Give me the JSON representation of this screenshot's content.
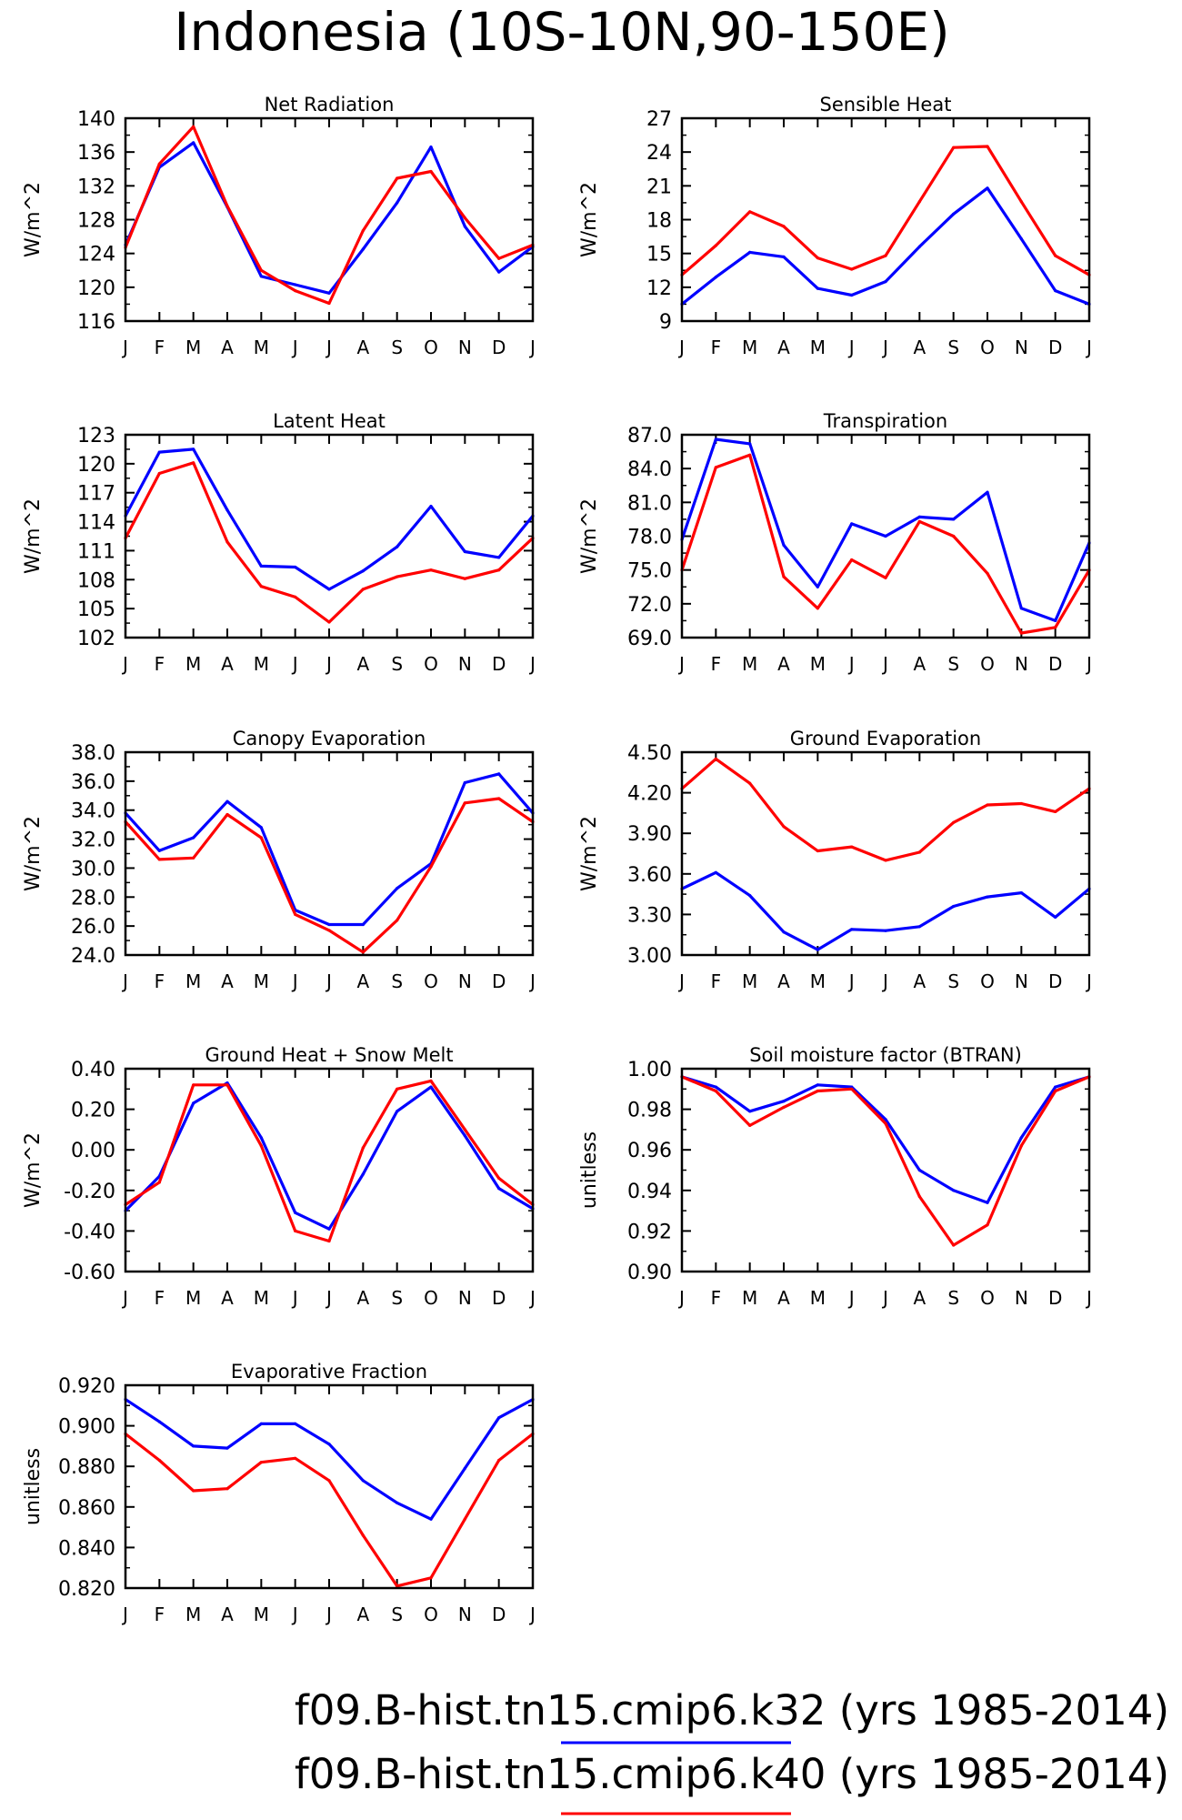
{
  "figure": {
    "title": "Indonesia (10S-10N,90-150E)"
  },
  "legend": [
    {
      "label": "f09.B-hist.tn15.cmip6.k32 (yrs 1985-2014)",
      "color": "#0000ff"
    },
    {
      "label": "f09.B-hist.tn15.cmip6.k40 (yrs 1985-2014)",
      "color": "#ff0000"
    }
  ],
  "colors": {
    "series_k32": "#0000ff",
    "series_k40": "#ff0000",
    "axis": "#000000"
  },
  "chart_data": [
    {
      "type": "line",
      "title": "Net Radiation",
      "ylabel": "W/m^2",
      "ylim": [
        116,
        140
      ],
      "yticks": [
        "116",
        "120",
        "124",
        "128",
        "132",
        "136",
        "140"
      ],
      "categories": [
        "J",
        "F",
        "M",
        "A",
        "M",
        "J",
        "J",
        "A",
        "S",
        "O",
        "N",
        "D",
        "J"
      ],
      "series": [
        {
          "name": "f09.B-hist.tn15.cmip6.k32",
          "color": "#0000ff",
          "values": [
            125,
            134.2,
            137.1,
            129.5,
            121.3,
            120.3,
            119.3,
            124.5,
            130.0,
            136.6,
            127.2,
            121.8,
            124.8
          ]
        },
        {
          "name": "f09.B-hist.tn15.cmip6.k40",
          "color": "#ff0000",
          "values": [
            124.7,
            134.6,
            139.0,
            129.6,
            122.0,
            119.6,
            118.1,
            126.7,
            132.9,
            133.7,
            128.2,
            123.4,
            125.0
          ]
        }
      ]
    },
    {
      "type": "line",
      "title": "Sensible Heat",
      "ylabel": "W/m^2",
      "ylim": [
        9,
        27
      ],
      "yticks": [
        "9",
        "12",
        "15",
        "18",
        "21",
        "24",
        "27"
      ],
      "categories": [
        "J",
        "F",
        "M",
        "A",
        "M",
        "J",
        "J",
        "A",
        "S",
        "O",
        "N",
        "D",
        "J"
      ],
      "series": [
        {
          "name": "f09.B-hist.tn15.cmip6.k32",
          "color": "#0000ff",
          "values": [
            10.5,
            12.9,
            15.1,
            14.7,
            11.9,
            11.3,
            12.5,
            15.6,
            18.5,
            20.8,
            16.3,
            11.7,
            10.5
          ]
        },
        {
          "name": "f09.B-hist.tn15.cmip6.k40",
          "color": "#ff0000",
          "values": [
            13.1,
            15.7,
            18.7,
            17.4,
            14.6,
            13.6,
            14.8,
            19.6,
            24.4,
            24.5,
            19.6,
            14.8,
            13.1
          ]
        }
      ]
    },
    {
      "type": "line",
      "title": "Latent Heat",
      "ylabel": "W/m^2",
      "ylim": [
        102,
        123
      ],
      "yticks": [
        "102",
        "105",
        "108",
        "111",
        "114",
        "117",
        "120",
        "123"
      ],
      "categories": [
        "J",
        "F",
        "M",
        "A",
        "M",
        "J",
        "J",
        "A",
        "S",
        "O",
        "N",
        "D",
        "J"
      ],
      "series": [
        {
          "name": "f09.B-hist.tn15.cmip6.k32",
          "color": "#0000ff",
          "values": [
            114.6,
            121.2,
            121.5,
            115.2,
            109.4,
            109.3,
            107.0,
            108.9,
            111.4,
            115.6,
            110.9,
            110.3,
            114.6
          ]
        },
        {
          "name": "f09.B-hist.tn15.cmip6.k40",
          "color": "#ff0000",
          "values": [
            112.3,
            119.0,
            120.1,
            111.9,
            107.3,
            106.2,
            103.6,
            107.0,
            108.3,
            109.0,
            108.1,
            109.0,
            112.3
          ]
        }
      ]
    },
    {
      "type": "line",
      "title": "Transpiration",
      "ylabel": "W/m^2",
      "ylim": [
        69,
        87
      ],
      "yticks": [
        "69.0",
        "72.0",
        "75.0",
        "78.0",
        "81.0",
        "84.0",
        "87.0"
      ],
      "categories": [
        "J",
        "F",
        "M",
        "A",
        "M",
        "J",
        "J",
        "A",
        "S",
        "O",
        "N",
        "D",
        "J"
      ],
      "series": [
        {
          "name": "f09.B-hist.tn15.cmip6.k32",
          "color": "#0000ff",
          "values": [
            77.7,
            86.6,
            86.2,
            77.2,
            73.5,
            79.1,
            78.0,
            79.7,
            79.5,
            81.9,
            71.6,
            70.5,
            77.4
          ]
        },
        {
          "name": "f09.B-hist.tn15.cmip6.k40",
          "color": "#ff0000",
          "values": [
            75.0,
            84.1,
            85.2,
            74.4,
            71.6,
            75.9,
            74.3,
            79.3,
            78.0,
            74.7,
            69.4,
            69.9,
            75.0
          ]
        }
      ]
    },
    {
      "type": "line",
      "title": "Canopy Evaporation",
      "ylabel": "W/m^2",
      "ylim": [
        24,
        38
      ],
      "yticks": [
        "24.0",
        "26.0",
        "28.0",
        "30.0",
        "32.0",
        "34.0",
        "36.0",
        "38.0"
      ],
      "categories": [
        "J",
        "F",
        "M",
        "A",
        "M",
        "J",
        "J",
        "A",
        "S",
        "O",
        "N",
        "D",
        "J"
      ],
      "series": [
        {
          "name": "f09.B-hist.tn15.cmip6.k32",
          "color": "#0000ff",
          "values": [
            33.8,
            31.2,
            32.1,
            34.6,
            32.8,
            27.1,
            26.1,
            26.1,
            28.6,
            30.3,
            35.9,
            36.5,
            33.8
          ]
        },
        {
          "name": "f09.B-hist.tn15.cmip6.k40",
          "color": "#ff0000",
          "values": [
            33.2,
            30.6,
            30.7,
            33.7,
            32.1,
            26.8,
            25.7,
            24.2,
            26.4,
            30.1,
            34.5,
            34.8,
            33.2
          ]
        }
      ]
    },
    {
      "type": "line",
      "title": "Ground Evaporation",
      "ylabel": "W/m^2",
      "ylim": [
        3.0,
        4.5
      ],
      "yticks": [
        "3.00",
        "3.30",
        "3.60",
        "3.90",
        "4.20",
        "4.50"
      ],
      "categories": [
        "J",
        "F",
        "M",
        "A",
        "M",
        "J",
        "J",
        "A",
        "S",
        "O",
        "N",
        "D",
        "J"
      ],
      "series": [
        {
          "name": "f09.B-hist.tn15.cmip6.k32",
          "color": "#0000ff",
          "values": [
            3.49,
            3.61,
            3.44,
            3.17,
            3.04,
            3.19,
            3.18,
            3.21,
            3.36,
            3.43,
            3.46,
            3.28,
            3.49
          ]
        },
        {
          "name": "f09.B-hist.tn15.cmip6.k40",
          "color": "#ff0000",
          "values": [
            4.23,
            4.45,
            4.27,
            3.95,
            3.77,
            3.8,
            3.7,
            3.76,
            3.98,
            4.11,
            4.12,
            4.06,
            4.23
          ]
        }
      ]
    },
    {
      "type": "line",
      "title": "Ground Heat + Snow Melt",
      "ylabel": "W/m^2",
      "ylim": [
        -0.6,
        0.4
      ],
      "yticks": [
        "-0.60",
        "-0.40",
        "-0.20",
        "0.00",
        "0.20",
        "0.40"
      ],
      "categories": [
        "J",
        "F",
        "M",
        "A",
        "M",
        "J",
        "J",
        "A",
        "S",
        "O",
        "N",
        "D",
        "J"
      ],
      "series": [
        {
          "name": "f09.B-hist.tn15.cmip6.k32",
          "color": "#0000ff",
          "values": [
            -0.3,
            -0.13,
            0.23,
            0.33,
            0.06,
            -0.31,
            -0.39,
            -0.12,
            0.19,
            0.31,
            0.07,
            -0.19,
            -0.29
          ]
        },
        {
          "name": "f09.B-hist.tn15.cmip6.k40",
          "color": "#ff0000",
          "values": [
            -0.27,
            -0.16,
            0.32,
            0.32,
            0.02,
            -0.4,
            -0.45,
            0.01,
            0.3,
            0.34,
            0.1,
            -0.14,
            -0.27
          ]
        }
      ]
    },
    {
      "type": "line",
      "title": "Soil moisture factor (BTRAN)",
      "ylabel": "unitless",
      "ylim": [
        0.9,
        1.0
      ],
      "yticks": [
        "0.90",
        "0.92",
        "0.94",
        "0.96",
        "0.98",
        "1.00"
      ],
      "categories": [
        "J",
        "F",
        "M",
        "A",
        "M",
        "J",
        "J",
        "A",
        "S",
        "O",
        "N",
        "D",
        "J"
      ],
      "series": [
        {
          "name": "f09.B-hist.tn15.cmip6.k32",
          "color": "#0000ff",
          "values": [
            0.996,
            0.991,
            0.979,
            0.984,
            0.992,
            0.991,
            0.975,
            0.95,
            0.94,
            0.934,
            0.966,
            0.991,
            0.996
          ]
        },
        {
          "name": "f09.B-hist.tn15.cmip6.k40",
          "color": "#ff0000",
          "values": [
            0.996,
            0.989,
            0.972,
            0.981,
            0.989,
            0.99,
            0.973,
            0.937,
            0.913,
            0.923,
            0.962,
            0.989,
            0.996
          ]
        }
      ]
    },
    {
      "type": "line",
      "title": "Evaporative Fraction",
      "ylabel": "unitless",
      "ylim": [
        0.82,
        0.92
      ],
      "yticks": [
        "0.820",
        "0.840",
        "0.860",
        "0.880",
        "0.900",
        "0.920"
      ],
      "categories": [
        "J",
        "F",
        "M",
        "A",
        "M",
        "J",
        "J",
        "A",
        "S",
        "O",
        "N",
        "D",
        "J"
      ],
      "series": [
        {
          "name": "f09.B-hist.tn15.cmip6.k32",
          "color": "#0000ff",
          "values": [
            0.913,
            0.902,
            0.89,
            0.889,
            0.901,
            0.901,
            0.891,
            0.873,
            0.862,
            0.854,
            0.879,
            0.904,
            0.913
          ]
        },
        {
          "name": "f09.B-hist.tn15.cmip6.k40",
          "color": "#ff0000",
          "values": [
            0.896,
            0.883,
            0.868,
            0.869,
            0.882,
            0.884,
            0.873,
            0.846,
            0.821,
            0.825,
            0.854,
            0.883,
            0.896
          ]
        }
      ]
    }
  ]
}
